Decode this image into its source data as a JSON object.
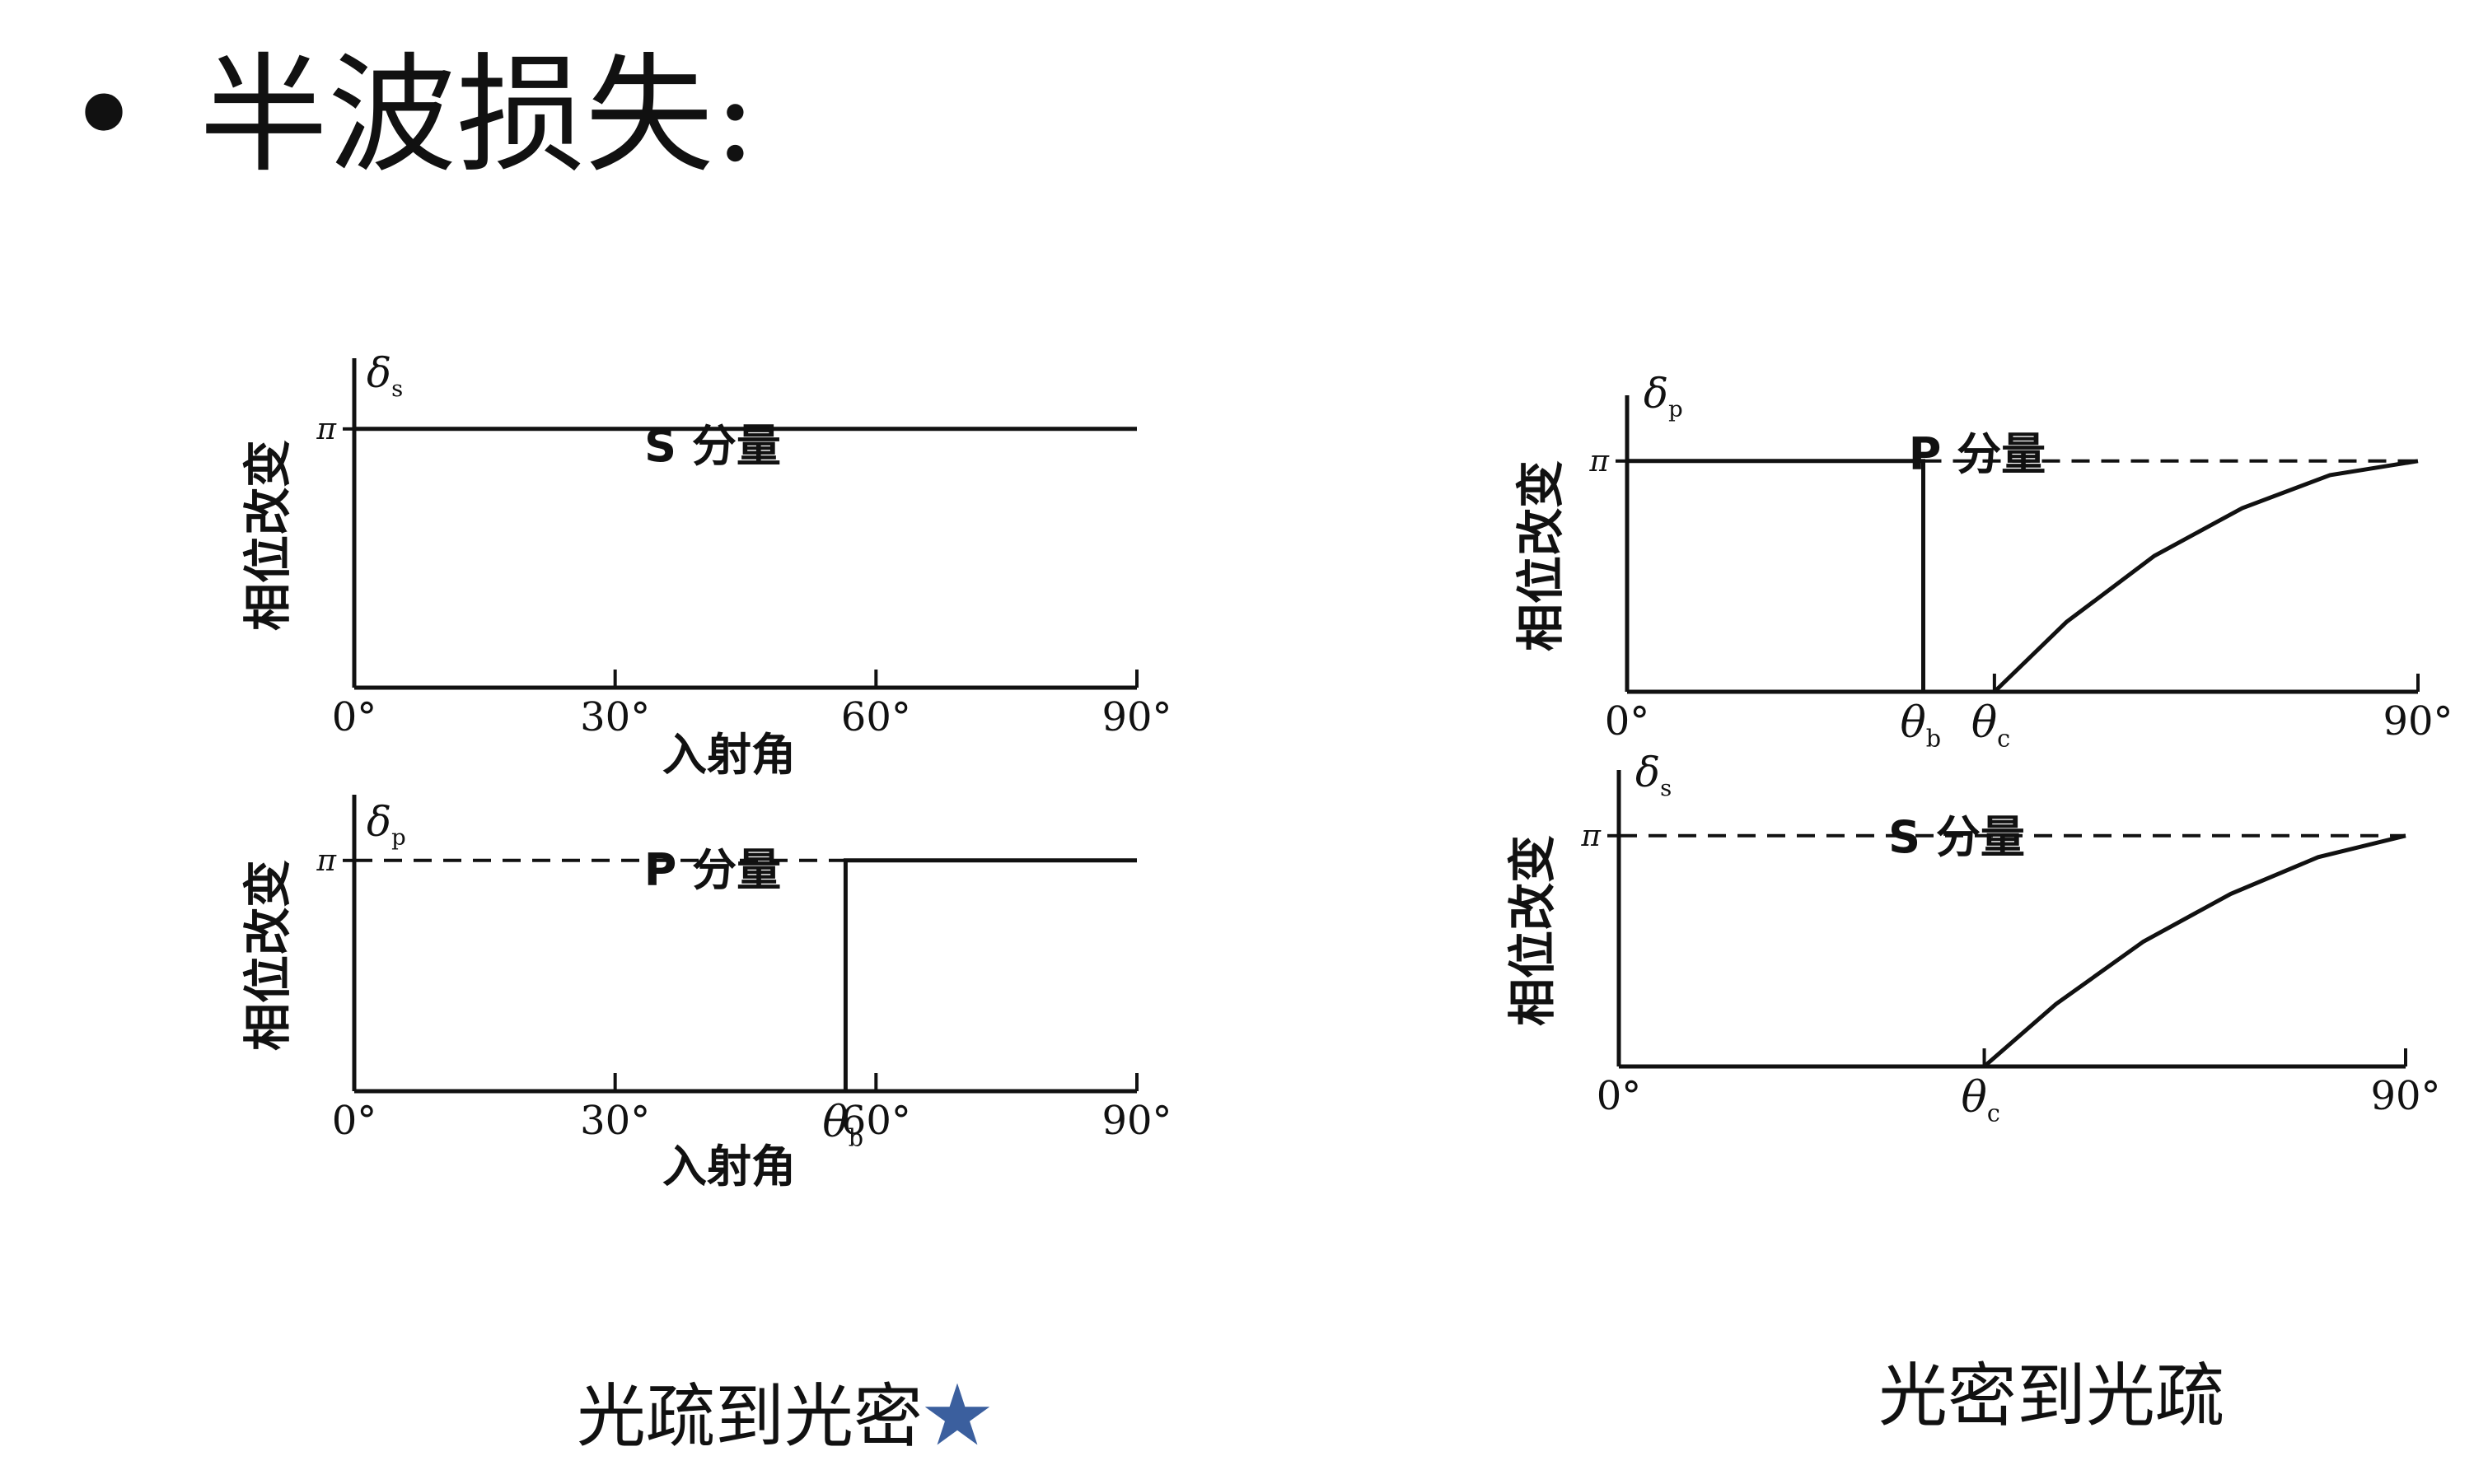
{
  "slide": {
    "bullet": "•",
    "title": "半波损失:"
  },
  "captions": {
    "left": "光疏到光密",
    "left_marker": "star-icon",
    "left_marker_color": "#3b5f9e",
    "left_marker_glyph": "★",
    "right": "光密到光疏"
  },
  "chart_data": [
    {
      "type": "line",
      "title": "S 分量",
      "ylabel": "相位改变",
      "y_symbol": "δs",
      "xlabel": "入射角",
      "x_ticks": [
        {
          "value": 0,
          "label": "0°"
        },
        {
          "value": 30,
          "label": "30°"
        },
        {
          "value": 60,
          "label": "60°"
        },
        {
          "value": 90,
          "label": "90°"
        }
      ],
      "y_ticks": [
        {
          "value": 3.1416,
          "label": "π"
        }
      ],
      "xlim": [
        0,
        90
      ],
      "ylim": [
        0,
        3.7
      ],
      "series": [
        {
          "style": "solid",
          "points": [
            [
              0,
              3.1416
            ],
            [
              90,
              3.1416
            ]
          ]
        }
      ]
    },
    {
      "type": "line",
      "title": "P 分量",
      "ylabel": "相位改变",
      "y_symbol": "δp",
      "xlabel": "入射角",
      "x_ticks": [
        {
          "value": 0,
          "label": "0°"
        },
        {
          "value": 30,
          "label": "30°"
        },
        {
          "value": 56.5,
          "label": "θb"
        },
        {
          "value": 60,
          "label": "60°"
        },
        {
          "value": 90,
          "label": "90°"
        }
      ],
      "y_ticks": [
        {
          "value": 3.1416,
          "label": "π"
        }
      ],
      "xlim": [
        0,
        90
      ],
      "ylim": [
        0,
        3.7
      ],
      "series": [
        {
          "style": "solid",
          "points": [
            [
              0,
              0
            ],
            [
              56.5,
              0
            ]
          ]
        },
        {
          "style": "dashed",
          "points": [
            [
              0,
              3.1416
            ],
            [
              56.5,
              3.1416
            ]
          ]
        },
        {
          "style": "solid",
          "points": [
            [
              56.5,
              0
            ],
            [
              56.5,
              3.1416
            ],
            [
              90,
              3.1416
            ]
          ]
        }
      ]
    },
    {
      "type": "line",
      "title": "P 分量",
      "ylabel": "相位改变",
      "y_symbol": "δp",
      "xlabel": "",
      "x_ticks": [
        {
          "value": 0,
          "label": "0°"
        },
        {
          "value": 33.7,
          "label": "θb"
        },
        {
          "value": 41.8,
          "label": "θc"
        },
        {
          "value": 90,
          "label": "90°"
        }
      ],
      "y_ticks": [
        {
          "value": 3.1416,
          "label": "π"
        }
      ],
      "xlim": [
        0,
        90
      ],
      "ylim": [
        0,
        3.7
      ],
      "series": [
        {
          "style": "solid",
          "points": [
            [
              0,
              3.1416
            ],
            [
              33.7,
              3.1416
            ],
            [
              33.7,
              0
            ],
            [
              41.8,
              0
            ]
          ]
        },
        {
          "style": "dashed",
          "points": [
            [
              33.7,
              3.1416
            ],
            [
              90,
              3.1416
            ]
          ]
        },
        {
          "style": "solid",
          "points": [
            [
              41.8,
              0
            ],
            [
              50,
              0.95
            ],
            [
              60,
              1.85
            ],
            [
              70,
              2.5
            ],
            [
              80,
              2.95
            ],
            [
              90,
              3.1416
            ]
          ]
        }
      ]
    },
    {
      "type": "line",
      "title": "S 分量",
      "ylabel": "相位改变",
      "y_symbol": "δs",
      "xlabel": "",
      "x_ticks": [
        {
          "value": 0,
          "label": "0°"
        },
        {
          "value": 41.8,
          "label": "θc"
        },
        {
          "value": 90,
          "label": "90°"
        }
      ],
      "y_ticks": [
        {
          "value": 3.1416,
          "label": "π"
        }
      ],
      "xlim": [
        0,
        90
      ],
      "ylim": [
        0,
        3.7
      ],
      "series": [
        {
          "style": "dashed",
          "points": [
            [
              0,
              3.1416
            ],
            [
              90,
              3.1416
            ]
          ]
        },
        {
          "style": "solid",
          "points": [
            [
              0,
              0
            ],
            [
              41.8,
              0
            ]
          ]
        },
        {
          "style": "solid",
          "points": [
            [
              41.8,
              0
            ],
            [
              50,
              0.85
            ],
            [
              60,
              1.7
            ],
            [
              70,
              2.35
            ],
            [
              80,
              2.85
            ],
            [
              90,
              3.1416
            ]
          ]
        }
      ]
    }
  ]
}
